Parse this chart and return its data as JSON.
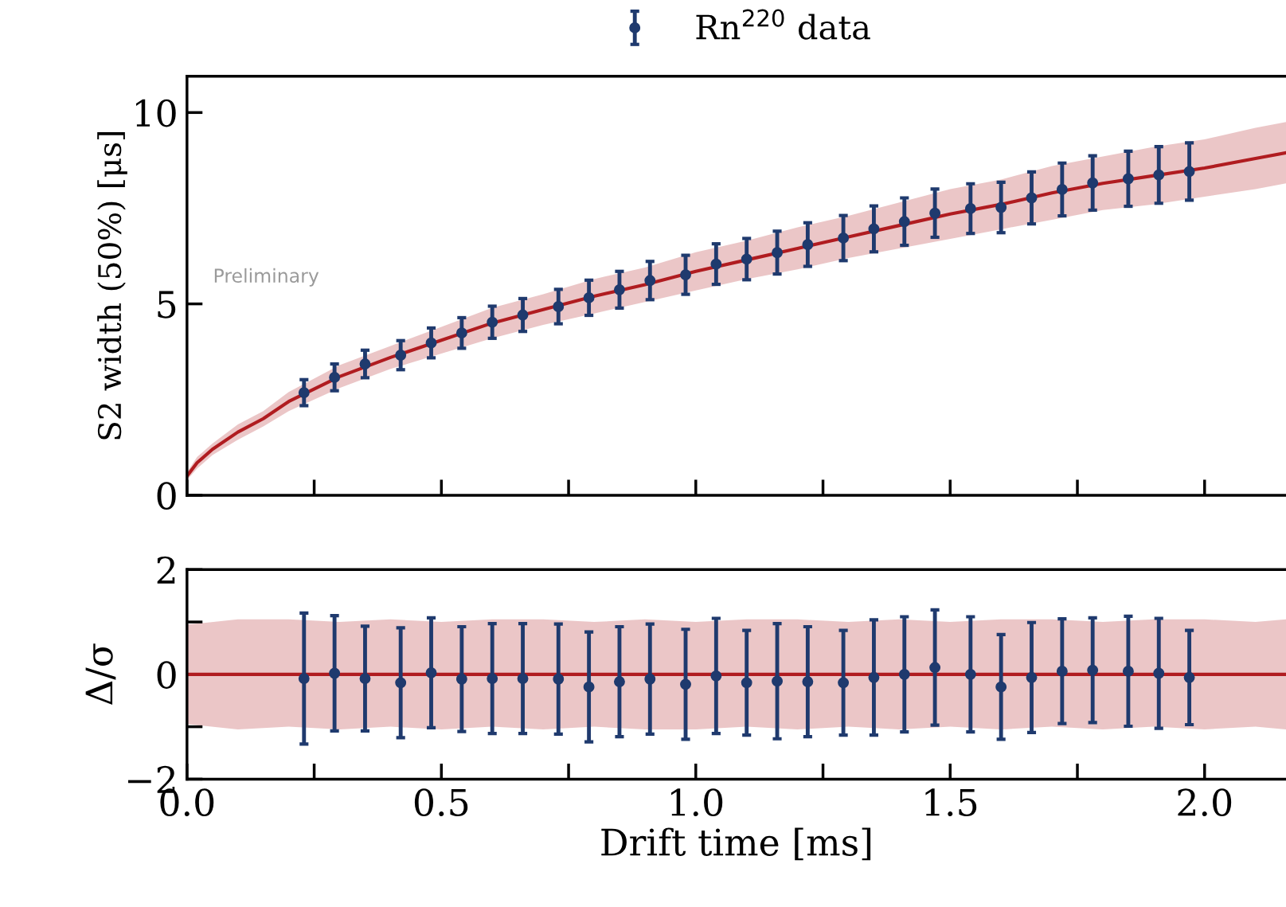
{
  "chart_data": [
    {
      "type": "line",
      "ylabel": "S2 width (50%) [μs]",
      "xlim": [
        0,
        2.16
      ],
      "ylim": [
        0,
        10.95
      ],
      "xticks": [
        0,
        0.5,
        1,
        1.5,
        2
      ],
      "yticks": [
        0,
        5,
        10
      ],
      "tick_labels": "y",
      "legend": "top",
      "grid": false,
      "annotations": [
        "Preliminary"
      ],
      "series": [
        {
          "color": "#b01c20",
          "x": [
            0,
            0.02,
            0.05,
            0.1,
            0.15,
            0.2,
            0.3,
            0.4,
            0.5,
            0.6,
            0.7,
            0.8,
            0.9,
            1.0,
            1.1,
            1.2,
            1.3,
            1.4,
            1.5,
            1.6,
            1.7,
            1.8,
            1.9,
            2.0,
            2.1,
            2.16
          ],
          "values": [
            0.5,
            0.85,
            1.2,
            1.65,
            2.0,
            2.45,
            3.1,
            3.6,
            4.05,
            4.5,
            4.85,
            5.2,
            5.5,
            5.85,
            6.15,
            6.45,
            6.75,
            7.05,
            7.35,
            7.6,
            7.9,
            8.15,
            8.35,
            8.55,
            8.8,
            8.95
          ],
          "lower": [
            0.4,
            0.7,
            1.05,
            1.45,
            1.8,
            2.2,
            2.8,
            3.3,
            3.7,
            4.1,
            4.45,
            4.75,
            5.05,
            5.35,
            5.65,
            5.9,
            6.2,
            6.45,
            6.7,
            6.95,
            7.2,
            7.45,
            7.6,
            7.8,
            8.0,
            8.15
          ],
          "upper": [
            0.6,
            1.0,
            1.35,
            1.85,
            2.2,
            2.7,
            3.4,
            3.9,
            4.4,
            4.9,
            5.25,
            5.65,
            5.95,
            6.35,
            6.65,
            7.0,
            7.3,
            7.65,
            8.0,
            8.25,
            8.6,
            8.85,
            9.1,
            9.3,
            9.6,
            9.75
          ]
        },
        {
          "type": "scatter",
          "name": "Rn$^{220}$ data",
          "color": "#1f3a6e",
          "marker": "circle",
          "x": [
            0.23,
            0.29,
            0.35,
            0.42,
            0.48,
            0.54,
            0.6,
            0.66,
            0.73,
            0.79,
            0.85,
            0.91,
            0.98,
            1.04,
            1.1,
            1.16,
            1.22,
            1.29,
            1.35,
            1.41,
            1.47,
            1.54,
            1.6,
            1.66,
            1.72,
            1.78,
            1.85,
            1.91,
            1.97
          ],
          "values": [
            2.68,
            3.08,
            3.43,
            3.66,
            3.98,
            4.24,
            4.52,
            4.71,
            4.93,
            5.16,
            5.37,
            5.61,
            5.76,
            6.04,
            6.17,
            6.34,
            6.55,
            6.72,
            6.96,
            7.15,
            7.37,
            7.49,
            7.52,
            7.77,
            7.99,
            8.16,
            8.27,
            8.37,
            8.46
          ],
          "errors": [
            0.34,
            0.35,
            0.36,
            0.38,
            0.39,
            0.4,
            0.42,
            0.43,
            0.45,
            0.46,
            0.48,
            0.5,
            0.51,
            0.53,
            0.54,
            0.56,
            0.57,
            0.59,
            0.6,
            0.62,
            0.63,
            0.65,
            0.66,
            0.68,
            0.69,
            0.71,
            0.72,
            0.74,
            0.75
          ]
        }
      ]
    },
    {
      "type": "line",
      "xlabel": "Drift time [ms]",
      "ylabel": "Δ/σ",
      "xlim": [
        0,
        2.16
      ],
      "ylim": [
        -2,
        2
      ],
      "xticks": [
        {
          "value": 0,
          "label": "0.0"
        },
        {
          "value": 0.5,
          "label": "0.5"
        },
        {
          "value": 1,
          "label": "1.0"
        },
        {
          "value": 1.5,
          "label": "1.5"
        },
        {
          "value": 2,
          "label": "2.0"
        }
      ],
      "yticks": [
        {
          "value": -2,
          "label": "−2"
        },
        0,
        2
      ],
      "grid": false,
      "series": [
        {
          "color": "#b01c20",
          "x": [
            0,
            0.1,
            0.2,
            0.3,
            0.4,
            0.5,
            0.6,
            0.7,
            0.8,
            0.9,
            1.0,
            1.1,
            1.2,
            1.3,
            1.4,
            1.5,
            1.6,
            1.7,
            1.8,
            1.9,
            2.0,
            2.1,
            2.16
          ],
          "values": [
            0,
            0,
            0,
            0,
            0,
            0,
            0,
            0,
            0,
            0,
            0,
            0,
            0,
            0,
            0,
            0,
            0,
            0,
            0,
            0,
            0,
            0,
            0
          ],
          "lower": [
            -0.95,
            -1.05,
            -1.0,
            -1.05,
            -1.0,
            -1.05,
            -1.0,
            -1.05,
            -1.0,
            -1.05,
            -1.05,
            -1.0,
            -1.05,
            -1.0,
            -1.05,
            -1.0,
            -1.05,
            -1.0,
            -1.05,
            -1.0,
            -1.05,
            -1.0,
            -1.05
          ],
          "upper": [
            0.95,
            1.05,
            1.05,
            1.0,
            1.05,
            1.0,
            1.05,
            1.05,
            1.0,
            1.05,
            1.0,
            1.05,
            1.05,
            1.0,
            1.05,
            1.0,
            1.05,
            1.05,
            1.0,
            1.05,
            1.05,
            1.0,
            1.05
          ]
        },
        {
          "type": "scatter",
          "color": "#1f3a6e",
          "marker": "circle",
          "x": [
            0.23,
            0.29,
            0.35,
            0.42,
            0.48,
            0.54,
            0.6,
            0.66,
            0.73,
            0.79,
            0.85,
            0.91,
            0.98,
            1.04,
            1.1,
            1.16,
            1.22,
            1.29,
            1.35,
            1.41,
            1.47,
            1.54,
            1.6,
            1.66,
            1.72,
            1.78,
            1.85,
            1.91,
            1.97
          ],
          "values": [
            -0.08,
            0.02,
            -0.08,
            -0.16,
            0.03,
            -0.09,
            -0.08,
            -0.08,
            -0.09,
            -0.24,
            -0.14,
            -0.09,
            -0.19,
            -0.03,
            -0.16,
            -0.13,
            -0.14,
            -0.16,
            -0.06,
            0,
            0.13,
            0,
            -0.24,
            -0.06,
            0.06,
            0.08,
            0.06,
            0.02,
            -0.06
          ],
          "errors": [
            1.25,
            1.1,
            1.0,
            1.05,
            1.05,
            1.0,
            1.05,
            1.05,
            1.05,
            1.05,
            1.05,
            1.05,
            1.05,
            1.1,
            1.0,
            1.1,
            1.05,
            1.0,
            1.1,
            1.1,
            1.1,
            1.1,
            1.0,
            1.05,
            1.0,
            1.0,
            1.05,
            1.05,
            0.9
          ]
        }
      ]
    }
  ]
}
